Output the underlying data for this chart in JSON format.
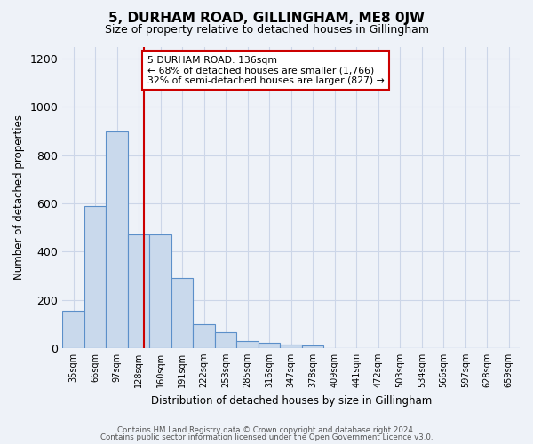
{
  "title": "5, DURHAM ROAD, GILLINGHAM, ME8 0JW",
  "subtitle": "Size of property relative to detached houses in Gillingham",
  "xlabel": "Distribution of detached houses by size in Gillingham",
  "ylabel": "Number of detached properties",
  "bar_labels": [
    "35sqm",
    "66sqm",
    "97sqm",
    "128sqm",
    "160sqm",
    "191sqm",
    "222sqm",
    "253sqm",
    "285sqm",
    "316sqm",
    "347sqm",
    "378sqm",
    "409sqm",
    "441sqm",
    "472sqm",
    "503sqm",
    "534sqm",
    "566sqm",
    "597sqm",
    "628sqm",
    "659sqm"
  ],
  "bar_values": [
    155,
    590,
    900,
    470,
    470,
    290,
    100,
    65,
    30,
    20,
    15,
    10,
    0,
    0,
    0,
    0,
    0,
    0,
    0,
    0,
    0
  ],
  "bar_color": "#c9d9ec",
  "bar_edge_color": "#5b8fc9",
  "vline_color": "#cc0000",
  "vline_x": 3.26,
  "annotation_title": "5 DURHAM ROAD: 136sqm",
  "annotation_line1": "← 68% of detached houses are smaller (1,766)",
  "annotation_line2": "32% of semi-detached houses are larger (827) →",
  "annotation_box_color": "#ffffff",
  "annotation_box_edge": "#cc0000",
  "ylim": [
    0,
    1250
  ],
  "yticks": [
    0,
    200,
    400,
    600,
    800,
    1000,
    1200
  ],
  "grid_color": "#ccd6e8",
  "background_color": "#eef2f8",
  "footer1": "Contains HM Land Registry data © Crown copyright and database right 2024.",
  "footer2": "Contains public sector information licensed under the Open Government Licence v3.0."
}
